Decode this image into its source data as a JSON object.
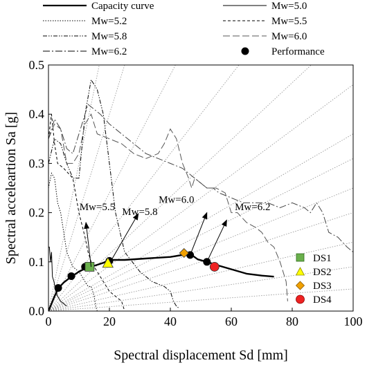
{
  "chart_data": {
    "type": "line",
    "title": "",
    "xlabel": "Spectral displacement Sd [mm]",
    "ylabel": "Spectral acceleartion Sa [g]",
    "xlim": [
      0,
      100
    ],
    "ylim": [
      0,
      0.5
    ],
    "x_ticks": [
      "0",
      "20",
      "40",
      "60",
      "80",
      "100"
    ],
    "y_ticks": [
      "0.0",
      "0.1",
      "0.2",
      "0.3",
      "0.4",
      "0.5"
    ],
    "grid": false,
    "legend_position": "top",
    "legend": [
      {
        "label": "Capacity curve",
        "style": "solid-thick"
      },
      {
        "label": "Mw=5.0",
        "style": "solid-thin"
      },
      {
        "label": "Mw=5.2",
        "style": "dotted"
      },
      {
        "label": "Mw=5.5",
        "style": "short-dash"
      },
      {
        "label": "Mw=5.8",
        "style": "dash-dot-dot"
      },
      {
        "label": "Mw=6.0",
        "style": "long-dash"
      },
      {
        "label": "Mw=6.2",
        "style": "dash-dot"
      },
      {
        "label": "Performance",
        "style": "marker"
      }
    ],
    "capacity_curve": {
      "name": "Capacity curve",
      "x": [
        0,
        1,
        2,
        3.2,
        5,
        7.5,
        10,
        12.5,
        15,
        18,
        20,
        25,
        30,
        35,
        40,
        45,
        47,
        49,
        52,
        55,
        60,
        65,
        70,
        74
      ],
      "y": [
        0,
        0.015,
        0.03,
        0.046,
        0.058,
        0.07,
        0.08,
        0.088,
        0.092,
        0.098,
        0.104,
        0.104,
        0.106,
        0.108,
        0.11,
        0.115,
        0.114,
        0.105,
        0.1,
        0.094,
        0.085,
        0.076,
        0.072,
        0.07
      ]
    },
    "demand_spectra": [
      {
        "name": "Mw=5.0",
        "x": [
          0,
          0.3,
          0.7,
          1,
          1.3,
          1.8,
          2.4,
          3,
          4,
          6
        ],
        "y": [
          0.13,
          0.13,
          0.1,
          0.12,
          0.07,
          0.06,
          0.04,
          0.03,
          0.02,
          0.01
        ]
      },
      {
        "name": "Mw=5.2",
        "x": [
          0,
          1,
          2,
          3,
          4,
          6,
          8,
          10,
          12,
          13,
          14,
          15,
          15.5,
          16
        ],
        "y": [
          0.25,
          0.28,
          0.27,
          0.22,
          0.2,
          0.12,
          0.09,
          0.08,
          0.06,
          0.05,
          0.05,
          0.03,
          0.01,
          0
        ]
      },
      {
        "name": "Mw=5.5",
        "x": [
          0,
          1,
          2,
          3,
          5,
          8,
          10,
          12,
          13,
          14,
          15,
          17,
          19,
          20,
          22,
          24,
          24.5,
          25
        ],
        "y": [
          0.35,
          0.4,
          0.34,
          0.3,
          0.29,
          0.27,
          0.2,
          0.15,
          0.12,
          0.1,
          0.09,
          0.07,
          0.05,
          0.04,
          0.03,
          0.02,
          0.01,
          0
        ]
      },
      {
        "name": "Mw=5.8",
        "x": [
          0,
          2,
          4,
          5,
          6,
          8,
          10,
          12,
          14,
          16,
          18,
          20,
          22,
          25,
          30,
          34,
          38,
          40,
          41,
          42,
          43
        ],
        "y": [
          0.3,
          0.35,
          0.34,
          0.32,
          0.3,
          0.27,
          0.27,
          0.4,
          0.47,
          0.45,
          0.4,
          0.3,
          0.2,
          0.12,
          0.08,
          0.06,
          0.05,
          0.04,
          0.02,
          0.01,
          0.005
        ]
      },
      {
        "name": "Mw=6.0",
        "x": [
          0,
          2,
          4,
          6,
          8,
          10,
          12,
          14,
          16,
          20,
          24,
          28,
          32,
          36,
          38,
          40,
          42,
          44,
          46,
          47,
          48,
          50,
          52,
          55,
          58,
          60,
          62,
          65,
          68,
          70,
          72,
          74,
          76,
          78,
          78.5
        ],
        "y": [
          0.35,
          0.38,
          0.37,
          0.3,
          0.3,
          0.32,
          0.38,
          0.4,
          0.36,
          0.35,
          0.34,
          0.32,
          0.31,
          0.32,
          0.34,
          0.37,
          0.35,
          0.3,
          0.27,
          0.25,
          0.27,
          0.26,
          0.25,
          0.25,
          0.24,
          0.2,
          0.2,
          0.18,
          0.17,
          0.16,
          0.14,
          0.13,
          0.1,
          0.06,
          0.02
        ]
      },
      {
        "name": "Mw=6.2",
        "x": [
          0,
          2,
          4,
          6,
          8,
          10,
          13,
          15,
          17,
          20,
          24,
          28,
          32,
          36,
          40,
          44,
          48,
          50,
          52,
          54,
          56,
          60,
          64,
          68,
          72,
          76,
          80,
          84,
          86,
          88,
          90,
          92,
          95,
          98,
          100
        ],
        "y": [
          0.35,
          0.39,
          0.37,
          0.33,
          0.32,
          0.36,
          0.42,
          0.41,
          0.4,
          0.38,
          0.36,
          0.34,
          0.32,
          0.31,
          0.3,
          0.29,
          0.27,
          0.26,
          0.25,
          0.25,
          0.24,
          0.23,
          0.22,
          0.22,
          0.22,
          0.21,
          0.22,
          0.21,
          0.2,
          0.22,
          0.2,
          0.16,
          0.15,
          0.13,
          0.12
        ]
      }
    ],
    "performance_points": {
      "name": "Performance",
      "x": [
        3.2,
        7.5,
        12,
        20,
        46.5,
        52
      ],
      "y": [
        0.047,
        0.071,
        0.09,
        0.102,
        0.114,
        0.1
      ]
    },
    "damage_states": [
      {
        "label": "DS1",
        "x": 13.5,
        "y": 0.09,
        "shape": "square",
        "color": "#6ab04c"
      },
      {
        "label": "DS2",
        "x": 19.5,
        "y": 0.098,
        "shape": "triangle",
        "color": "#ffff00"
      },
      {
        "label": "DS3",
        "x": 44.5,
        "y": 0.118,
        "shape": "diamond",
        "color": "#f0a000"
      },
      {
        "label": "DS4",
        "x": 54.5,
        "y": 0.09,
        "shape": "circle",
        "color": "#ee2222"
      }
    ],
    "radial_lines_slopes": [
      0.00045,
      0.0009,
      0.0014,
      0.002,
      0.0025,
      0.0031,
      0.0036,
      0.0046,
      0.0058,
      0.008,
      0.012,
      0.02,
      0.03
    ],
    "annotations": [
      {
        "text": "Mw=5.5",
        "text_x": 16,
        "text_y": 0.205,
        "arrow_from": [
          14,
          0.09
        ],
        "arrow_to": [
          12.3,
          0.18
        ]
      },
      {
        "text": "Mw=5.8",
        "text_x": 30,
        "text_y": 0.195,
        "arrow_from": [
          20.5,
          0.102
        ],
        "arrow_to": [
          29.5,
          0.198
        ]
      },
      {
        "text": "Mw=6.0",
        "text_x": 42,
        "text_y": 0.22,
        "arrow_from": [
          46.5,
          0.114
        ],
        "arrow_to": [
          52,
          0.2
        ]
      },
      {
        "text": "Mw=6.2",
        "text_x": 67,
        "text_y": 0.205,
        "arrow_from": [
          52,
          0.1
        ],
        "arrow_to": [
          58.5,
          0.185
        ]
      }
    ]
  }
}
